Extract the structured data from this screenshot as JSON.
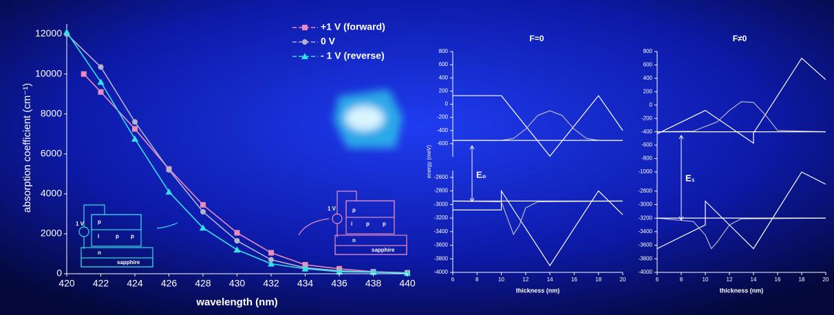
{
  "chart_data": [
    {
      "type": "line",
      "x_label": "wavelength (nm)",
      "y_label": "absorption coefficient (cm⁻¹)",
      "xlim": [
        420,
        440
      ],
      "xticks": [
        420,
        422,
        424,
        426,
        428,
        430,
        432,
        434,
        436,
        438,
        440
      ],
      "ylim": [
        0,
        12500
      ],
      "yticks": [
        0,
        2000,
        4000,
        6000,
        8000,
        10000,
        12000
      ],
      "series": [
        {
          "name": "+1 V (forward)",
          "color": "#e88cc0",
          "marker": "square",
          "x": [
            421,
            422,
            424,
            426,
            428,
            430,
            432,
            434,
            436,
            438,
            440
          ],
          "values": [
            10000,
            9100,
            7250,
            5250,
            3450,
            2050,
            1050,
            450,
            250,
            100,
            50
          ]
        },
        {
          "name": "0 V",
          "color": "#b4b4cc",
          "marker": "circle",
          "x": [
            420,
            422,
            424,
            426,
            428,
            430,
            432,
            434,
            436,
            438,
            440
          ],
          "values": [
            12000,
            10350,
            7600,
            5200,
            3100,
            1650,
            700,
            300,
            150,
            80,
            40
          ]
        },
        {
          "name": "- 1 V (reverse)",
          "color": "#35e0e6",
          "marker": "triangle",
          "x": [
            420,
            422,
            424,
            426,
            428,
            430,
            432,
            434,
            436,
            438,
            440
          ],
          "values": [
            12100,
            9600,
            6750,
            4100,
            2300,
            1200,
            500,
            250,
            100,
            80,
            30
          ]
        }
      ],
      "insets": [
        {
          "color": "#35d8e6",
          "labels": [
            "1 V",
            "p",
            "i",
            "p",
            "p",
            "n",
            "sapphire"
          ]
        },
        {
          "color": "#e88cc0",
          "labels": [
            "1 V",
            "p",
            "i",
            "p",
            "p",
            "n",
            "sapphire"
          ]
        }
      ]
    },
    {
      "type": "line",
      "title": "F=0",
      "x_label": "thickness (nm)",
      "y_label": "energy (meV)",
      "xlim": [
        6,
        20
      ],
      "xticks": [
        6,
        8,
        10,
        12,
        14,
        16,
        18,
        20
      ],
      "annotations": [
        "E₀"
      ],
      "parts": [
        {
          "ylim": [
            -800,
            800
          ],
          "yticks": [
            800,
            600,
            400,
            200,
            0,
            -200,
            -400,
            -600
          ],
          "series": [
            {
              "color": "#ffffff",
              "x": [
                6,
                10,
                14,
                18,
                20
              ],
              "values": [
                130,
                130,
                -790,
                130,
                -400
              ]
            },
            {
              "color": "#b8b8c8",
              "x": [
                6,
                10,
                11,
                12,
                13,
                14,
                15,
                16,
                17,
                18,
                20
              ],
              "values": [
                -550,
                -550,
                -520,
                -380,
                -170,
                -100,
                -170,
                -380,
                -520,
                -550,
                -550
              ]
            },
            {
              "color": "#ffffff",
              "x": [
                6,
                20
              ],
              "values": [
                -550,
                -550
              ]
            }
          ]
        },
        {
          "ylim": [
            -4000,
            -2500
          ],
          "yticks": [
            -2600,
            -2800,
            -3000,
            -3200,
            -3400,
            -3600,
            -3800,
            -4000
          ],
          "series": [
            {
              "color": "#ffffff",
              "x": [
                6,
                10,
                10,
                14,
                18,
                20
              ],
              "values": [
                -3080,
                -3080,
                -2800,
                -3900,
                -2800,
                -3150
              ]
            },
            {
              "color": "#b8b8c8",
              "x": [
                6,
                10,
                10.5,
                11,
                11.5,
                12,
                13,
                20
              ],
              "values": [
                -2950,
                -2960,
                -3200,
                -3440,
                -3300,
                -3050,
                -2960,
                -2950
              ]
            },
            {
              "color": "#ffffff",
              "x": [
                6,
                20
              ],
              "values": [
                -2950,
                -2950
              ]
            }
          ]
        }
      ]
    },
    {
      "type": "line",
      "title": "F≠0",
      "x_label": "thickness (nm)",
      "xlim": [
        6,
        20
      ],
      "xticks": [
        6,
        8,
        10,
        12,
        14,
        16,
        18,
        20
      ],
      "annotations": [
        "E₁"
      ],
      "parts": [
        {
          "ylim": [
            -1100,
            800
          ],
          "yticks": [
            800,
            600,
            400,
            200,
            0,
            -200,
            -400,
            -600,
            -800,
            -1000
          ],
          "series": [
            {
              "color": "#ffffff",
              "x": [
                6,
                10,
                14,
                14,
                18,
                20
              ],
              "values": [
                -430,
                -80,
                -570,
                -420,
                700,
                380
              ]
            },
            {
              "color": "#b8b8c8",
              "x": [
                6,
                9,
                11,
                12,
                13,
                14,
                15,
                16,
                20
              ],
              "values": [
                -400,
                -390,
                -250,
                -80,
                50,
                40,
                -150,
                -380,
                -400
              ]
            },
            {
              "color": "#ffffff",
              "x": [
                6,
                20
              ],
              "values": [
                -400,
                -400
              ]
            }
          ]
        },
        {
          "ylim": [
            -4000,
            -2600
          ],
          "yticks": [
            -2800,
            -3000,
            -3200,
            -3400,
            -3600,
            -3800,
            -4000
          ],
          "series": [
            {
              "color": "#ffffff",
              "x": [
                6,
                10,
                10,
                14,
                18,
                20
              ],
              "values": [
                -3650,
                -3300,
                -2950,
                -3650,
                -2520,
                -2700
              ]
            },
            {
              "color": "#b8b8c8",
              "x": [
                6,
                9,
                10,
                10.5,
                11,
                12,
                13,
                20
              ],
              "values": [
                -3200,
                -3250,
                -3450,
                -3650,
                -3550,
                -3300,
                -3210,
                -3200
              ]
            },
            {
              "color": "#ffffff",
              "x": [
                6,
                20
              ],
              "values": [
                -3200,
                -3200
              ]
            }
          ]
        }
      ]
    }
  ]
}
